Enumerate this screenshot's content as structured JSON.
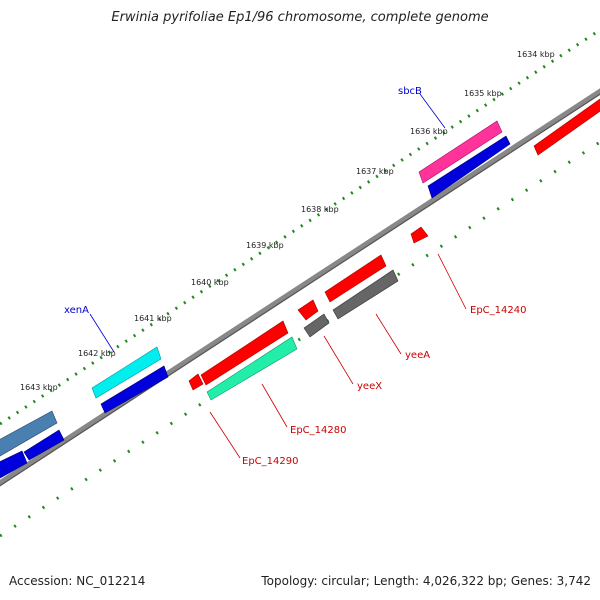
{
  "title": "Erwinia pyrifoliae Ep1/96 chromosome, complete genome",
  "accession_label": "Accession: NC_012214",
  "summary_label": "Topology: circular; Length: 4,026,322 bp; Genes: 3,742",
  "ticks": [
    "1634 kbp",
    "1635 kbp",
    "1636 kbp",
    "1637 kbp",
    "1638 kbp",
    "1639 kbp",
    "1640 kbp",
    "1641 kbp",
    "1642 kbp",
    "1643 kbp"
  ],
  "gene_labels": {
    "sbcB": "sbcB",
    "xenA": "xenA",
    "EpC_14240": "EpC_14240",
    "yeeA": "yeeA",
    "yeeX": "yeeX",
    "EpC_14280": "EpC_14280",
    "EpC_14290": "EpC_14290"
  },
  "colors": {
    "red": "#ff0000",
    "blue": "#0000dd",
    "magenta": "#ff3399",
    "cyan": "#00eeee",
    "mint": "#22eeaa",
    "gray": "#666666",
    "steel": "#4a80b0",
    "backbone": "#777777",
    "tick_green": "#228822",
    "label_red": "#cc0000",
    "label_blue": "#0000cc"
  }
}
